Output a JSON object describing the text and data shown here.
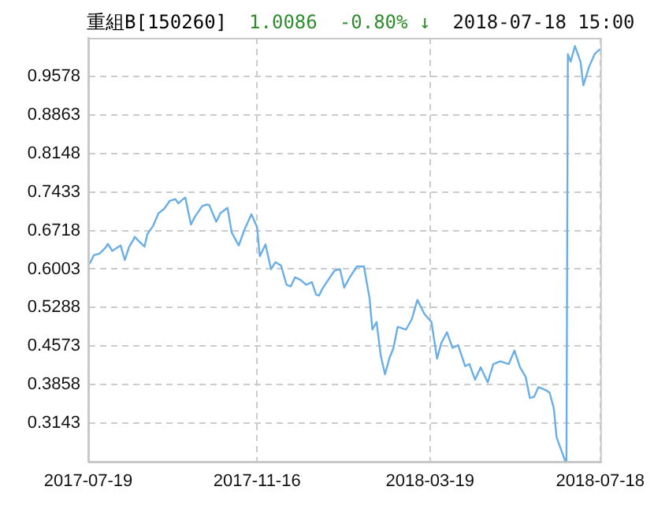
{
  "chart_data": {
    "type": "line",
    "title": "重組B[150260]",
    "annotations": [
      "1.0086",
      "-0.80% ↓",
      "2018-07-18 15:00"
    ],
    "x": [
      "2017-07-20",
      "2017-07-23",
      "2017-07-27",
      "2017-07-31",
      "2017-08-02",
      "2017-08-05",
      "2017-08-08",
      "2017-08-11",
      "2017-08-14",
      "2017-08-17",
      "2017-08-20",
      "2017-08-21",
      "2017-08-24",
      "2017-08-28",
      "2017-08-30",
      "2017-09-03",
      "2017-09-07",
      "2017-09-11",
      "2017-09-15",
      "2017-09-19",
      "2017-09-21",
      "2017-09-24",
      "2017-09-26",
      "2017-09-30",
      "2017-10-03",
      "2017-10-08",
      "2017-10-11",
      "2017-10-13",
      "2017-10-18",
      "2017-10-21",
      "2017-10-26",
      "2017-10-29",
      "2017-11-03",
      "2017-11-07",
      "2017-11-12",
      "2017-11-16",
      "2017-11-18",
      "2017-11-22",
      "2017-11-26",
      "2017-11-29",
      "2017-12-03",
      "2017-12-07",
      "2017-12-10",
      "2017-12-13",
      "2017-12-17",
      "2017-12-21",
      "2017-12-25",
      "2017-12-28",
      "2017-12-30",
      "2018-01-02",
      "2018-01-10",
      "2018-01-14",
      "2018-01-17",
      "2018-01-21",
      "2018-01-26",
      "2018-01-31",
      "2018-02-04",
      "2018-02-06",
      "2018-02-09",
      "2018-02-12",
      "2018-02-15",
      "2018-02-18",
      "2018-02-21",
      "2018-02-24",
      "2018-03-02",
      "2018-03-06",
      "2018-03-10",
      "2018-03-15",
      "2018-03-20",
      "2018-03-24",
      "2018-03-27",
      "2018-03-31",
      "2018-04-04",
      "2018-04-08",
      "2018-04-13",
      "2018-04-16",
      "2018-04-20",
      "2018-04-24",
      "2018-04-29",
      "2018-05-03",
      "2018-05-08",
      "2018-05-14",
      "2018-05-18",
      "2018-05-22",
      "2018-05-26",
      "2018-05-29",
      "2018-06-01",
      "2018-06-04",
      "2018-06-09",
      "2018-06-12",
      "2018-06-15",
      "2018-06-17",
      "2018-06-21",
      "2018-06-23",
      "2018-06-24",
      "2018-06-25",
      "2018-06-27",
      "2018-06-30",
      "2018-07-04",
      "2018-07-06",
      "2018-07-10",
      "2018-07-14",
      "2018-07-18"
    ],
    "series": [
      {
        "color": "#6aaee8",
        "values": [
          0.61,
          0.626,
          0.629,
          0.639,
          0.647,
          0.634,
          0.639,
          0.644,
          0.617,
          0.641,
          0.654,
          0.66,
          0.652,
          0.642,
          0.665,
          0.68,
          0.704,
          0.712,
          0.727,
          0.73,
          0.722,
          0.729,
          0.733,
          0.683,
          0.698,
          0.717,
          0.72,
          0.719,
          0.688,
          0.704,
          0.714,
          0.668,
          0.644,
          0.673,
          0.702,
          0.678,
          0.624,
          0.646,
          0.6,
          0.613,
          0.607,
          0.571,
          0.568,
          0.585,
          0.58,
          0.571,
          0.576,
          0.553,
          0.551,
          0.566,
          0.597,
          0.6,
          0.566,
          0.585,
          0.605,
          0.605,
          0.546,
          0.488,
          0.502,
          0.439,
          0.405,
          0.434,
          0.454,
          0.493,
          0.488,
          0.507,
          0.543,
          0.517,
          0.502,
          0.434,
          0.463,
          0.483,
          0.454,
          0.459,
          0.42,
          0.424,
          0.395,
          0.418,
          0.39,
          0.424,
          0.429,
          0.424,
          0.449,
          0.418,
          0.4,
          0.361,
          0.363,
          0.381,
          0.376,
          0.371,
          0.342,
          0.288,
          0.259,
          0.245,
          0.245,
          0.999,
          0.985,
          1.014,
          0.985,
          0.941,
          0.975,
          0.999,
          1.0086
        ]
      }
    ],
    "ylim": [
      0.2428,
      1.0293
    ],
    "yticks": [
      0.3143,
      0.3858,
      0.4573,
      0.5288,
      0.6003,
      0.6718,
      0.7433,
      0.8148,
      0.8863,
      0.9578
    ],
    "xlim": [
      "2017-07-19",
      "2018-07-18"
    ],
    "xticks": [
      "2017-07-19",
      "2017-11-16",
      "2018-03-19",
      "2018-07-18"
    ],
    "grid": true,
    "legend": false,
    "marker": "none",
    "line_style": "solid"
  }
}
